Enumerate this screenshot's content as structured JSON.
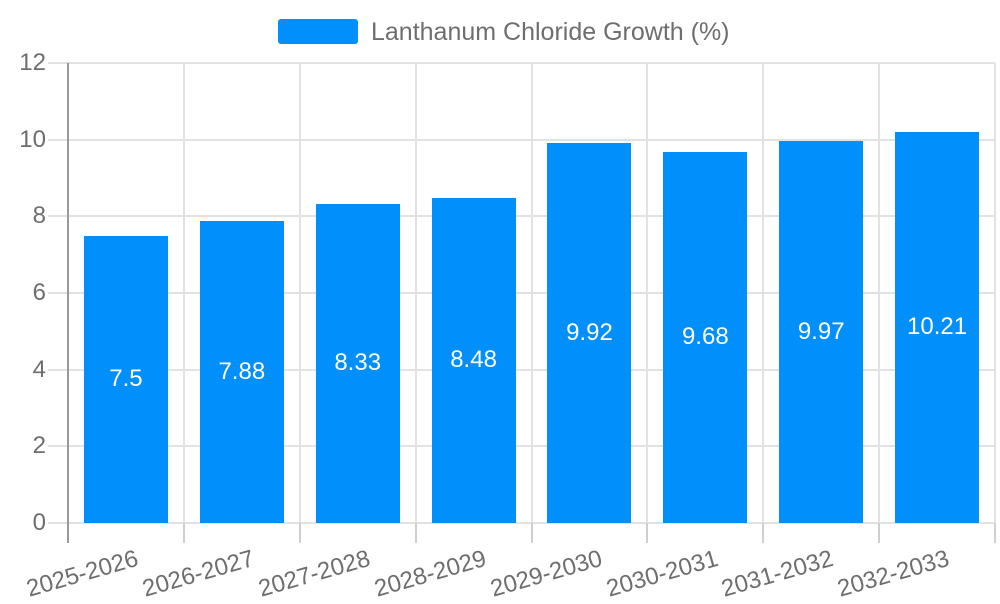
{
  "legend": {
    "label": "Lanthanum Chloride Growth (%)"
  },
  "chart_data": {
    "type": "bar",
    "title": "Lanthanum Chloride Growth (%)",
    "categories": [
      "2025-2026",
      "2026-2027",
      "2027-2028",
      "2028-2029",
      "2029-2030",
      "2030-2031",
      "2031-2032",
      "2032-2033"
    ],
    "series": [
      {
        "name": "Lanthanum Chloride Growth (%)",
        "values": [
          7.5,
          7.88,
          8.33,
          8.48,
          9.92,
          9.68,
          9.97,
          10.21
        ]
      }
    ],
    "value_labels": [
      "7.5",
      "7.88",
      "8.33",
      "8.48",
      "9.92",
      "9.68",
      "9.97",
      "10.21"
    ],
    "xlabel": "",
    "ylabel": "",
    "ylim": [
      0,
      12
    ],
    "yticks": [
      0,
      2,
      4,
      6,
      8,
      10,
      12
    ],
    "grid": true,
    "legend_position": "top",
    "colors": {
      "bar": "#008FFB",
      "grid": "#e2e2e2",
      "axis": "#999999",
      "x_tick": "#cfcfcf",
      "axis_label": "#6e6e6e",
      "legend_text": "#6e6e6e",
      "bar_label": "#ffffff"
    }
  }
}
